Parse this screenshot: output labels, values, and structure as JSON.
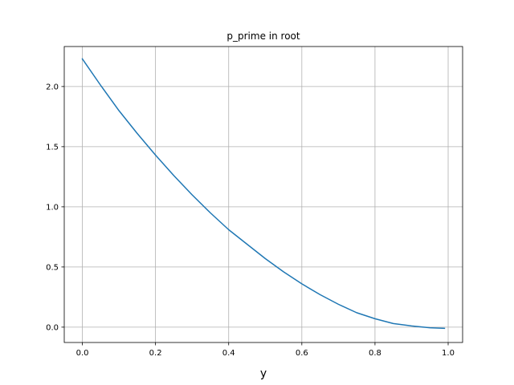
{
  "chart_data": {
    "type": "line",
    "title": "p_prime in root",
    "xlabel": "y",
    "ylabel": "",
    "xlim": [
      -0.0495,
      1.0395
    ],
    "ylim": [
      -0.1275,
      2.3325
    ],
    "xticks": [
      0.0,
      0.2,
      0.4,
      0.6,
      0.8,
      1.0
    ],
    "xtick_labels": [
      "0.0",
      "0.2",
      "0.4",
      "0.6",
      "0.8",
      "1.0"
    ],
    "yticks": [
      0.0,
      0.5,
      1.0,
      1.5,
      2.0
    ],
    "ytick_labels": [
      "0.0",
      "0.5",
      "1.0",
      "1.5",
      "2.0"
    ],
    "grid": true,
    "line_color": "#1f77b4",
    "grid_color": "#b0b0b0",
    "series": [
      {
        "x": [
          0.0,
          0.05,
          0.1,
          0.15,
          0.2,
          0.25,
          0.3,
          0.35,
          0.4,
          0.45,
          0.5,
          0.55,
          0.6,
          0.65,
          0.7,
          0.75,
          0.8,
          0.85,
          0.9,
          0.95,
          0.99
        ],
        "y": [
          2.23,
          2.01,
          1.8,
          1.61,
          1.43,
          1.26,
          1.1,
          0.95,
          0.81,
          0.69,
          0.57,
          0.46,
          0.36,
          0.27,
          0.19,
          0.12,
          0.07,
          0.03,
          0.01,
          -0.005,
          -0.01
        ]
      }
    ]
  }
}
